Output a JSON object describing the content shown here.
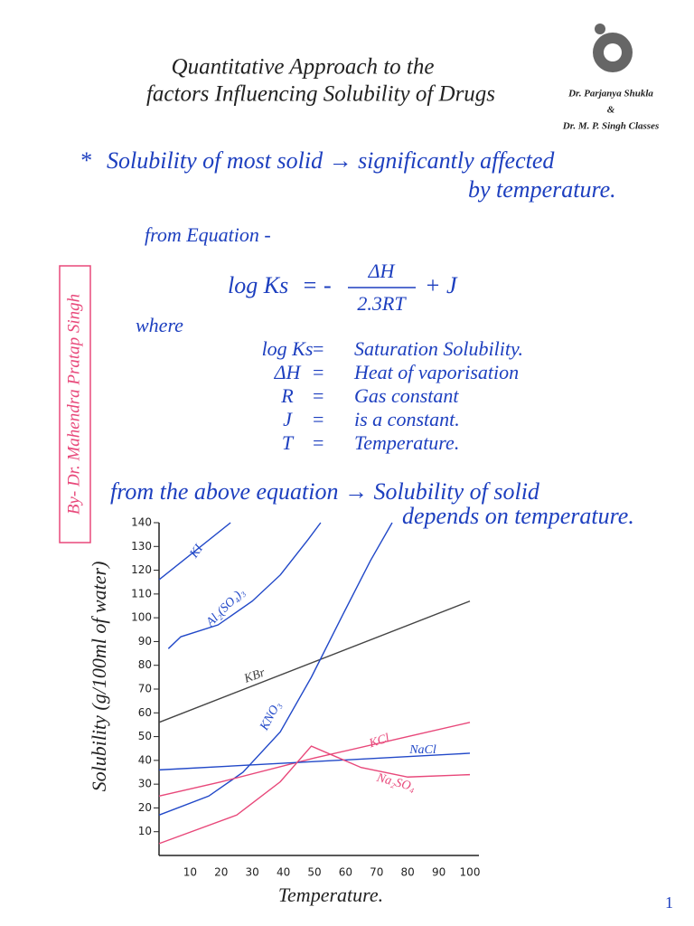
{
  "header": {
    "title_line1": "Quantitative Approach to the",
    "title_line2": "factors Influencing Solubility of Drugs",
    "logo_name1": "Dr. Parjanya Shukla",
    "logo_and": "&",
    "logo_name2": "Dr. M. P. Singh Classes"
  },
  "side_note": "By- Dr. Mahendra Pratap Singh",
  "point": {
    "bullet": "*",
    "line1": "Solubility of most solid → significantly affected",
    "line2": "by temperature."
  },
  "equation_intro": "from Equation -",
  "equation": {
    "lhs": "log Ks",
    "sign": "= -",
    "numerator": "ΔH",
    "denominator": "2.3RT",
    "rest": "+ J"
  },
  "where": "where",
  "definitions": [
    [
      "log Ks",
      "=",
      "Saturation Solubility."
    ],
    [
      "ΔH",
      "=",
      "Heat of vaporisation"
    ],
    [
      "R",
      "=",
      "Gas constant"
    ],
    [
      "J",
      "=",
      "is a constant."
    ],
    [
      "T",
      "=",
      "Temperature."
    ]
  ],
  "conclusion": {
    "line1": "from the above equation → Solubility of solid",
    "line2": "depends on temperature."
  },
  "page_number": "1",
  "chart_data": {
    "type": "line",
    "xlabel": "Temperature.",
    "ylabel": "Solubility (g/100ml of water)",
    "xlim": [
      0,
      100
    ],
    "ylim": [
      0,
      140
    ],
    "xticks": [
      10,
      20,
      30,
      40,
      50,
      60,
      70,
      80,
      90,
      100
    ],
    "yticks": [
      10,
      20,
      30,
      40,
      50,
      60,
      70,
      80,
      90,
      100,
      110,
      120,
      130,
      140
    ],
    "series": [
      {
        "name": "KI",
        "color": "#2148c8",
        "x": [
          0,
          23
        ],
        "values": [
          116,
          140
        ]
      },
      {
        "name": "Al₂(SO₄)₃",
        "color": "#2148c8",
        "x": [
          3,
          7,
          19,
          30,
          39,
          48,
          52
        ],
        "values": [
          87,
          92,
          97,
          107,
          118,
          133,
          140
        ]
      },
      {
        "name": "KBr",
        "color": "#444444",
        "x": [
          0,
          100
        ],
        "values": [
          56,
          107
        ]
      },
      {
        "name": "KNO₃",
        "color": "#2148c8",
        "x": [
          0,
          16,
          27,
          39,
          49,
          59,
          68,
          75
        ],
        "values": [
          17,
          25,
          35,
          52,
          75,
          101,
          124,
          140
        ]
      },
      {
        "name": "KCl",
        "color": "#e8487a",
        "x": [
          0,
          20,
          50,
          80,
          100
        ],
        "values": [
          25,
          31,
          41,
          50,
          56
        ]
      },
      {
        "name": "NaCl",
        "color": "#2148c8",
        "x": [
          0,
          100
        ],
        "values": [
          36,
          43
        ]
      },
      {
        "name": "Na₂SO₄",
        "color": "#e8487a",
        "x": [
          0,
          25,
          39,
          49,
          65,
          80,
          100
        ],
        "values": [
          5,
          17,
          31,
          46,
          37,
          33,
          34
        ]
      }
    ]
  }
}
